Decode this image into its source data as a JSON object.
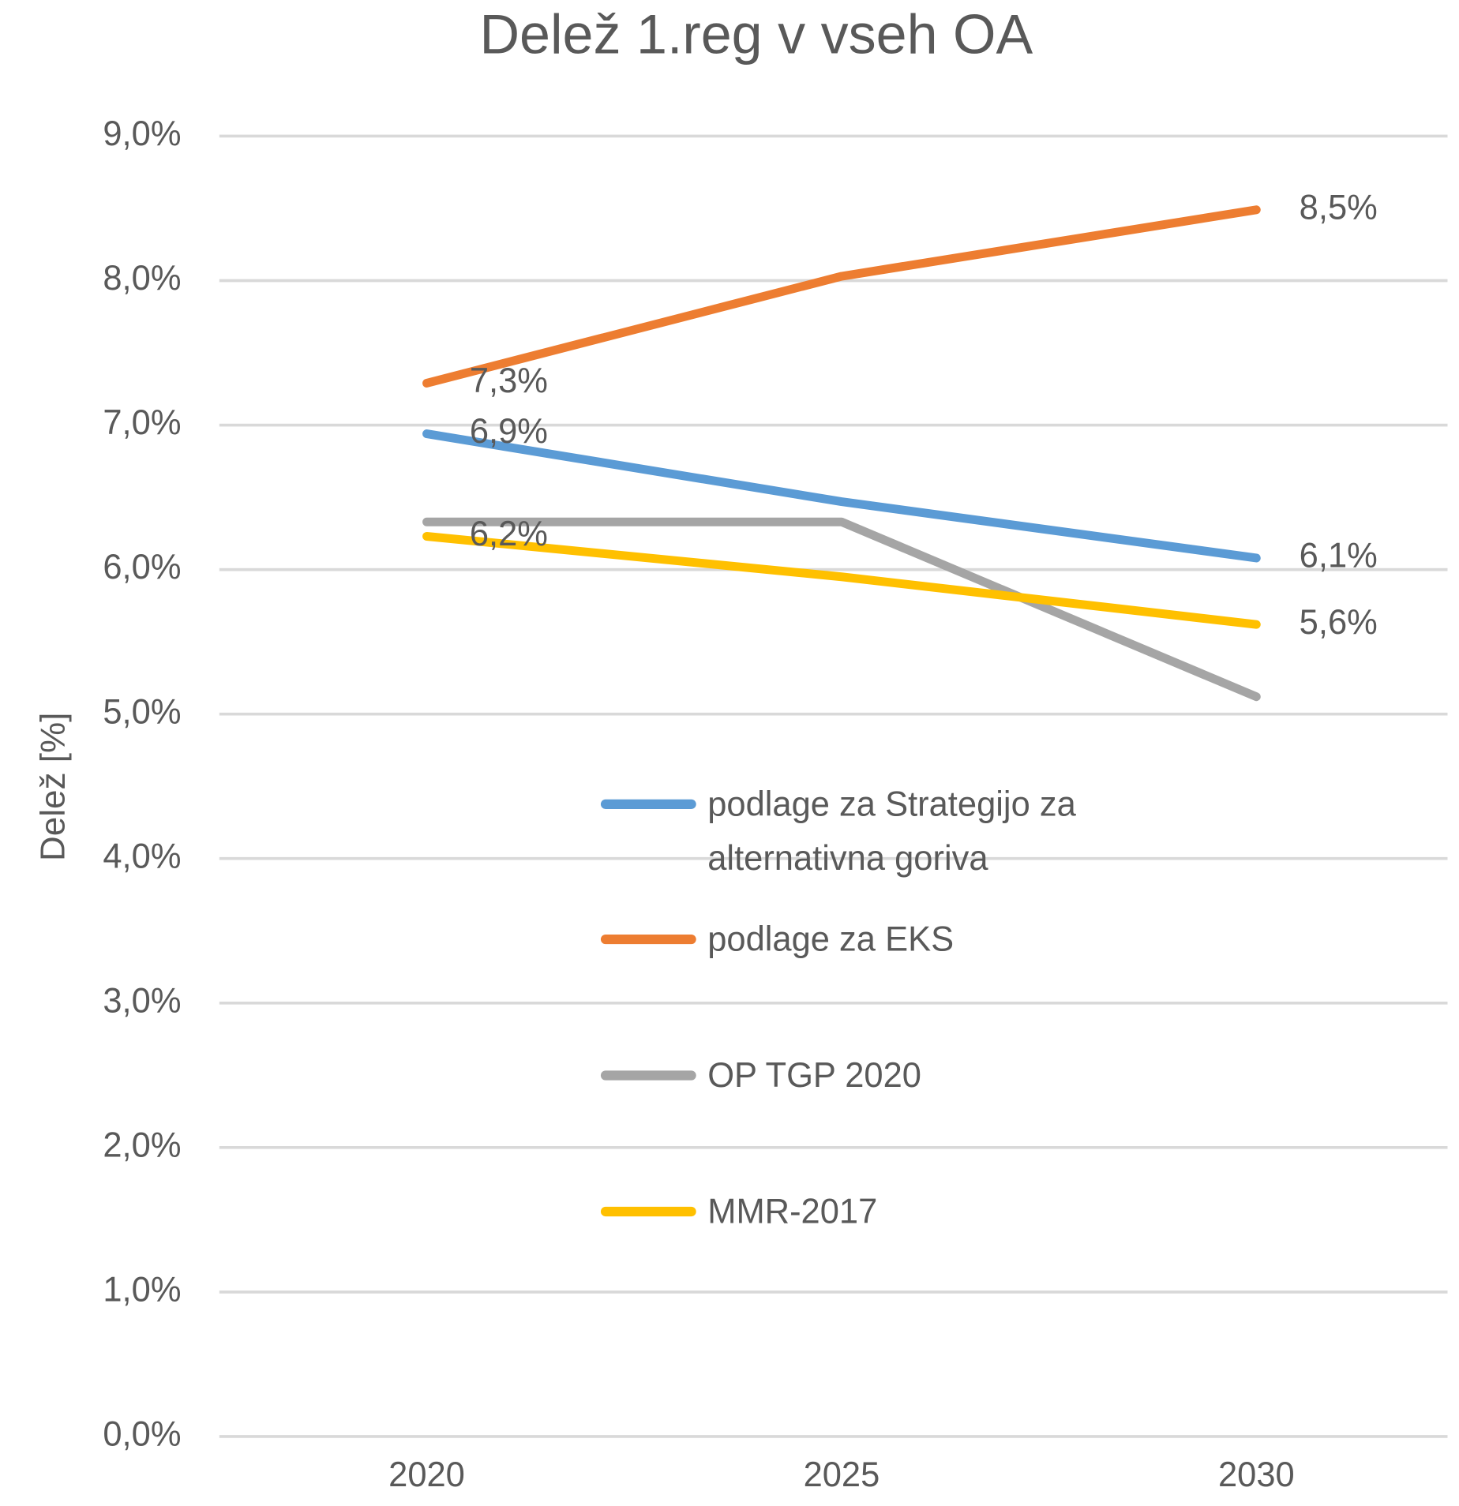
{
  "chart_data": {
    "type": "line",
    "title": "Delež 1.reg v vseh OA",
    "y_label": "Delež [%]",
    "categories": [
      "2020",
      "2025",
      "2030"
    ],
    "series": [
      {
        "name": "podlage za Strategijo za alternativna goriva",
        "color": "#5b9bd5",
        "values": [
          6.94,
          6.47,
          6.08
        ],
        "value_labels": [
          "6,9%",
          null,
          "6,1%"
        ]
      },
      {
        "name": "podlage za EKS",
        "color": "#ed7d31",
        "values": [
          7.29,
          8.03,
          8.49
        ],
        "value_labels": [
          "7,3%",
          null,
          "8,5%"
        ]
      },
      {
        "name": "OP TGP 2020",
        "color": "#a5a5a5",
        "values": [
          6.33,
          6.33,
          5.12
        ],
        "value_labels": [
          null,
          null,
          null
        ]
      },
      {
        "name": "MMR-2017",
        "color": "#ffc000",
        "values": [
          6.23,
          5.95,
          5.62
        ],
        "value_labels": [
          "6,2%",
          null,
          "5,6%"
        ]
      }
    ],
    "ylim": [
      0,
      9
    ],
    "yticks": [
      {
        "value": 0,
        "label": "0,0%"
      },
      {
        "value": 1,
        "label": "1,0%"
      },
      {
        "value": 2,
        "label": "2,0%"
      },
      {
        "value": 3,
        "label": "3,0%"
      },
      {
        "value": 4,
        "label": "4,0%"
      },
      {
        "value": 5,
        "label": "5,0%"
      },
      {
        "value": 6,
        "label": "6,0%"
      },
      {
        "value": 7,
        "label": "7,0%"
      },
      {
        "value": 8,
        "label": "8,0%"
      },
      {
        "value": 9,
        "label": "9,0%"
      }
    ],
    "grid": true
  }
}
